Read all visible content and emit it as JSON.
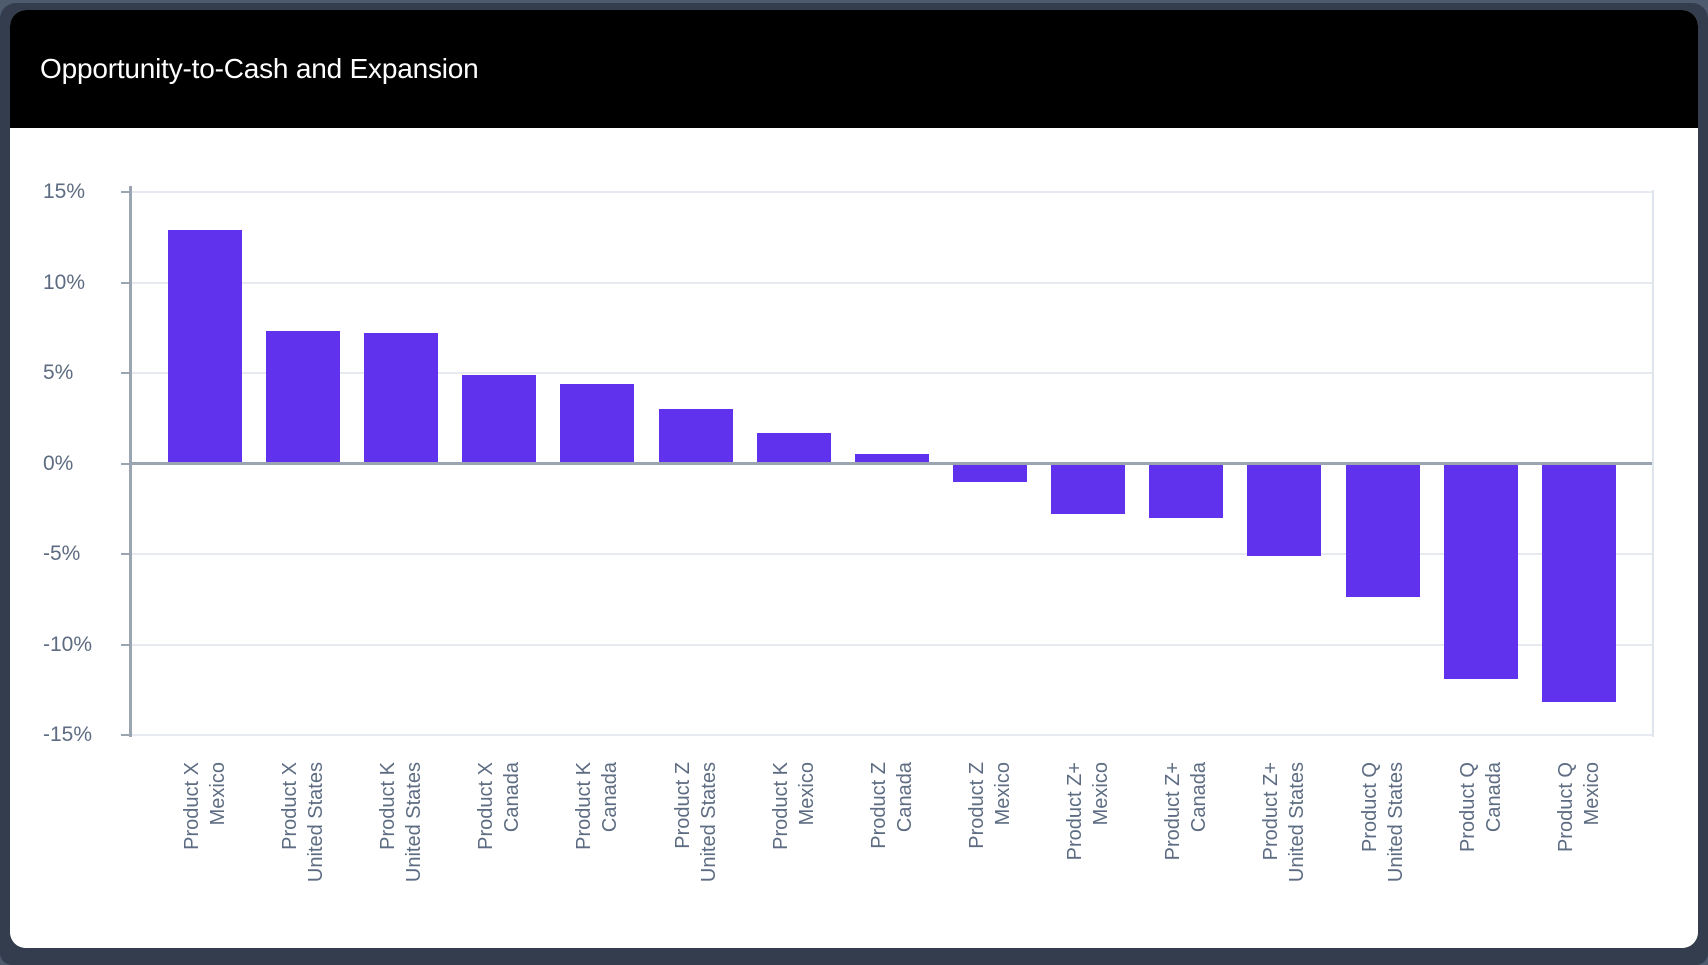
{
  "window": {
    "title": "Opportunity-to-Cash and Expansion"
  },
  "theme": {
    "page_bg": "#4E5A6D",
    "frame": "#333D4D",
    "card_bg": "#FFFFFF",
    "header_bg": "#000000",
    "title_color": "#FFFFFF",
    "bar": "#6132EE",
    "axis_line": "#9AA5B1",
    "gridline": "#E7EBF1",
    "plot_right_border": "#DFE5EC",
    "tick_label": "#5D6C82"
  },
  "chart_data": {
    "type": "bar",
    "title": "Opportunity-to-Cash and Expansion",
    "categories": [
      {
        "product": "Product X",
        "country": "Mexico"
      },
      {
        "product": "Product X",
        "country": "United States"
      },
      {
        "product": "Product K",
        "country": "United States"
      },
      {
        "product": "Product X",
        "country": "Canada"
      },
      {
        "product": "Product K",
        "country": "Canada"
      },
      {
        "product": "Product Z",
        "country": "United States"
      },
      {
        "product": "Product K",
        "country": "Mexico"
      },
      {
        "product": "Product Z",
        "country": "Canada"
      },
      {
        "product": "Product Z",
        "country": "Mexico"
      },
      {
        "product": "Product Z+",
        "country": "Mexico"
      },
      {
        "product": "Product Z+",
        "country": "Canada"
      },
      {
        "product": "Product Z+",
        "country": "United States"
      },
      {
        "product": "Product Q",
        "country": "United States"
      },
      {
        "product": "Product Q",
        "country": "Canada"
      },
      {
        "product": "Product Q",
        "country": "Mexico"
      }
    ],
    "values": [
      12.9,
      7.3,
      7.2,
      4.9,
      4.4,
      3.0,
      1.7,
      0.5,
      -1.0,
      -2.8,
      -3.0,
      -5.1,
      -7.4,
      -11.9,
      -13.2
    ],
    "unit": "%",
    "xlabel": "",
    "ylabel": "",
    "y_ticks": [
      15,
      10,
      5,
      0,
      -5,
      -10,
      -15
    ],
    "y_tick_labels": [
      "15%",
      "10%",
      "5%",
      "0%",
      "-5%",
      "-10%",
      "-15%"
    ],
    "ylim": [
      -15,
      15
    ],
    "grid": true,
    "legend": false,
    "bar_color": "#6132EE",
    "x_tick_rotation_deg": -90
  }
}
